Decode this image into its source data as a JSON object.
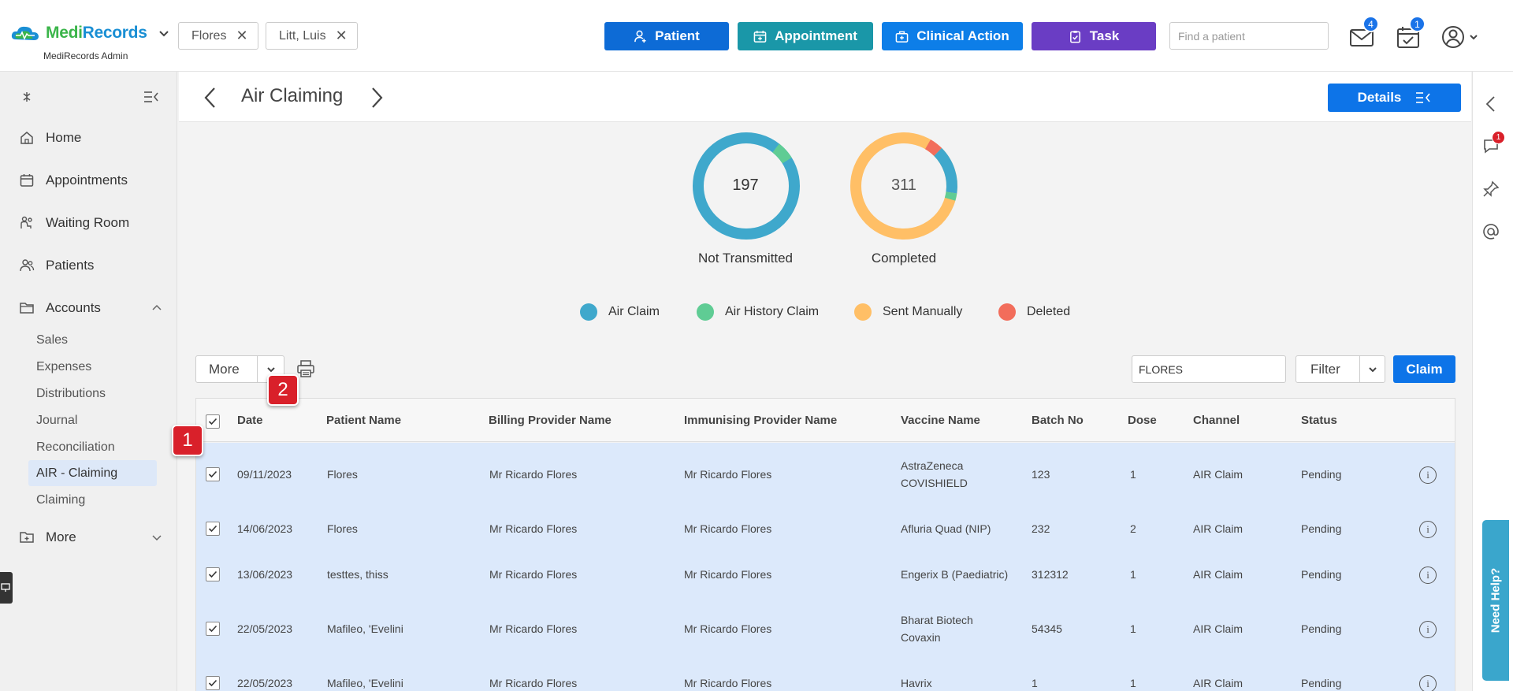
{
  "app": {
    "logo_part1": "Medi",
    "logo_part2": "Records",
    "subtitle": "MediRecords Admin"
  },
  "header": {
    "open_tabs": [
      {
        "label": "Flores"
      },
      {
        "label": "Litt, Luis"
      }
    ],
    "actions": [
      {
        "label": "Patient",
        "color": "#0d6bd6"
      },
      {
        "label": "Appointment",
        "color": "#1a97a8"
      },
      {
        "label": "Clinical Action",
        "color": "#0d7ee8"
      },
      {
        "label": "Task",
        "color": "#6a3dc4"
      }
    ],
    "search_placeholder": "Find a patient",
    "mail_badge": "4",
    "tasks_badge": "1"
  },
  "sidebar": {
    "items": [
      {
        "label": "Home"
      },
      {
        "label": "Appointments"
      },
      {
        "label": "Waiting Room"
      },
      {
        "label": "Patients"
      },
      {
        "label": "Accounts"
      },
      {
        "label": "More"
      }
    ],
    "accounts_sub": [
      {
        "label": "Sales"
      },
      {
        "label": "Expenses"
      },
      {
        "label": "Distributions"
      },
      {
        "label": "Journal"
      },
      {
        "label": "Reconciliation"
      },
      {
        "label": "AIR - Claiming",
        "active": true
      },
      {
        "label": "Claiming"
      }
    ]
  },
  "page": {
    "title": "Air Claiming",
    "details_label": "Details"
  },
  "right_rail": {
    "chat_badge": "1",
    "help_label": "Need Help?"
  },
  "summary": {
    "donuts": [
      {
        "value": "197",
        "label": "Not Transmitted"
      },
      {
        "value": "311",
        "label": "Completed"
      }
    ],
    "legend": [
      {
        "label": "Air Claim",
        "color": "#3fa8cc"
      },
      {
        "label": "Air History Claim",
        "color": "#5fcc94"
      },
      {
        "label": "Sent Manually",
        "color": "#ffbf66"
      },
      {
        "label": "Deleted",
        "color": "#f26d5b"
      }
    ]
  },
  "toolbar": {
    "more_label": "More",
    "search_value": "FLORES",
    "filter_label": "Filter",
    "claim_label": "Claim"
  },
  "table": {
    "columns": [
      "Date",
      "Patient Name",
      "Billing Provider Name",
      "Immunising Provider Name",
      "Vaccine Name",
      "Batch No",
      "Dose",
      "Channel",
      "Status"
    ],
    "rows": [
      {
        "date": "09/11/2023",
        "patient": "Flores",
        "billing": "Mr Ricardo Flores",
        "immunising": "Mr Ricardo Flores",
        "vaccine": "AstraZeneca",
        "vaccine2": "COVISHIELD",
        "batch": "123",
        "dose": "1",
        "channel": "AIR Claim",
        "status": "Pending"
      },
      {
        "date": "14/06/2023",
        "patient": "Flores",
        "billing": "Mr Ricardo Flores",
        "immunising": "Mr Ricardo Flores",
        "vaccine": "Afluria Quad (NIP)",
        "vaccine2": "",
        "batch": "232",
        "dose": "2",
        "channel": "AIR Claim",
        "status": "Pending"
      },
      {
        "date": "13/06/2023",
        "patient": "testtes, thiss",
        "billing": "Mr Ricardo Flores",
        "immunising": "Mr Ricardo Flores",
        "vaccine": "Engerix B (Paediatric)",
        "vaccine2": "",
        "batch": "312312",
        "dose": "1",
        "channel": "AIR Claim",
        "status": "Pending"
      },
      {
        "date": "22/05/2023",
        "patient": "Mafileo, 'Evelini",
        "billing": "Mr Ricardo Flores",
        "immunising": "Mr Ricardo Flores",
        "vaccine": "Bharat Biotech",
        "vaccine2": "Covaxin",
        "batch": "54345",
        "dose": "1",
        "channel": "AIR Claim",
        "status": "Pending"
      },
      {
        "date": "22/05/2023",
        "patient": "Mafileo, 'Evelini",
        "billing": "Mr Ricardo Flores",
        "immunising": "Mr Ricardo Flores",
        "vaccine": "Havrix",
        "vaccine2": "",
        "batch": "1",
        "dose": "1",
        "channel": "AIR Claim",
        "status": "Pending"
      }
    ]
  },
  "markers": [
    {
      "label": "1"
    },
    {
      "label": "2"
    }
  ]
}
